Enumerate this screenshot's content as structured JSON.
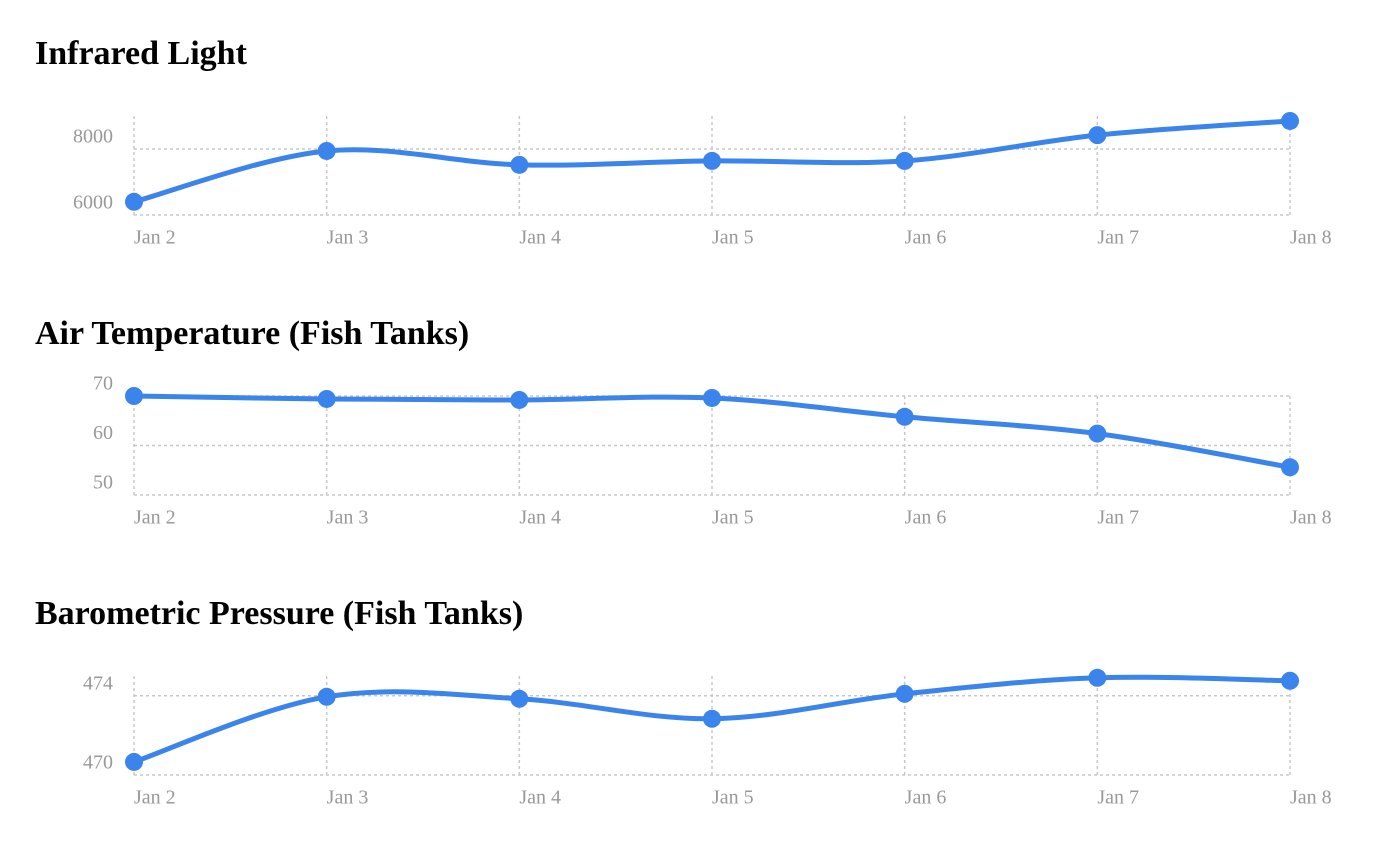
{
  "chart_data": [
    {
      "type": "line",
      "title": "Infrared Light",
      "categories": [
        "Jan 2",
        "Jan 3",
        "Jan 4",
        "Jan 5",
        "Jan 6",
        "Jan 7",
        "Jan 8"
      ],
      "values": [
        6400,
        7940,
        7520,
        7640,
        7640,
        8420,
        8850
      ],
      "color": "#3a84ec",
      "ylim": [
        6000,
        9000
      ],
      "yticks": [
        6000,
        8000
      ],
      "grid": true
    },
    {
      "type": "line",
      "title": "Air Temperature (Fish Tanks)",
      "categories": [
        "Jan 2",
        "Jan 3",
        "Jan 4",
        "Jan 5",
        "Jan 6",
        "Jan 7",
        "Jan 8"
      ],
      "values": [
        70.0,
        69.4,
        69.2,
        69.6,
        65.8,
        62.4,
        55.6
      ],
      "color": "#3a84ec",
      "ylim": [
        50,
        70
      ],
      "yticks": [
        50,
        60,
        70
      ],
      "grid": true
    },
    {
      "type": "line",
      "title": "Barometric Pressure (Fish Tanks)",
      "categories": [
        "Jan 2",
        "Jan 3",
        "Jan 4",
        "Jan 5",
        "Jan 6",
        "Jan 7",
        "Jan 8"
      ],
      "values": [
        470.66,
        473.95,
        473.85,
        472.84,
        474.1,
        474.91,
        474.76
      ],
      "color": "#3a84ec",
      "ylim": [
        470,
        475
      ],
      "yticks": [
        470,
        474
      ],
      "grid": true
    }
  ]
}
